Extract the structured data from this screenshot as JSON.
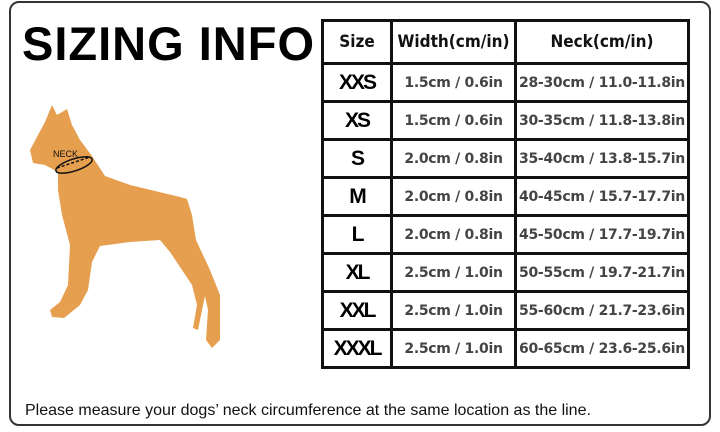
{
  "title": "SIZING INFO",
  "diagram": {
    "neck_label": "NECK",
    "dog_color": "#E69F4E"
  },
  "table": {
    "headers": [
      "Size",
      "Width(cm/in)",
      "Neck(cm/in)"
    ],
    "rows": [
      {
        "size": "XXS",
        "width": "1.5cm / 0.6in",
        "neck": "28-30cm / 11.0-11.8in"
      },
      {
        "size": "XS",
        "width": "1.5cm / 0.6in",
        "neck": "30-35cm / 11.8-13.8in"
      },
      {
        "size": "S",
        "width": "2.0cm / 0.8in",
        "neck": "35-40cm / 13.8-15.7in"
      },
      {
        "size": "M",
        "width": "2.0cm / 0.8in",
        "neck": "40-45cm / 15.7-17.7in"
      },
      {
        "size": "L",
        "width": "2.0cm / 0.8in",
        "neck": "45-50cm / 17.7-19.7in"
      },
      {
        "size": "XL",
        "width": "2.5cm / 1.0in",
        "neck": "50-55cm / 19.7-21.7in"
      },
      {
        "size": "XXL",
        "width": "2.5cm / 1.0in",
        "neck": "55-60cm / 21.7-23.6in"
      },
      {
        "size": "XXXL",
        "width": "2.5cm / 1.0in",
        "neck": "60-65cm / 23.6-25.6in"
      }
    ]
  },
  "note": "Please measure your dogs’  neck circumference at the same location as the line."
}
